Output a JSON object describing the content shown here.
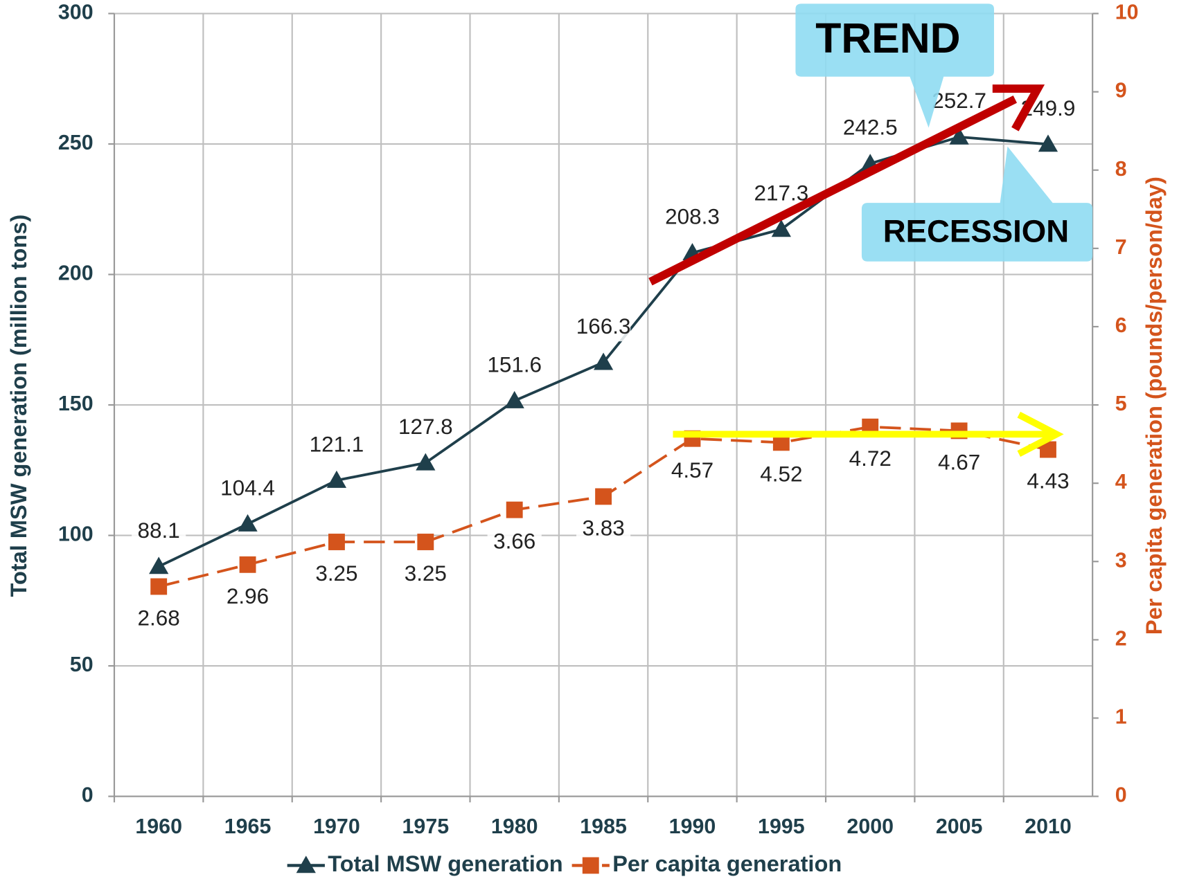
{
  "chart_data": {
    "type": "line",
    "categories": [
      "1960",
      "1965",
      "1970",
      "1975",
      "1980",
      "1985",
      "1990",
      "1995",
      "2000",
      "2005",
      "2010"
    ],
    "series": [
      {
        "name": "Total MSW generation",
        "color": "#1f3f4b",
        "marker": "triangle",
        "dashed": false,
        "values": [
          88.1,
          104.4,
          121.1,
          127.8,
          151.6,
          166.3,
          208.3,
          217.3,
          242.5,
          252.7,
          249.9
        ]
      },
      {
        "name": "Per capita generation",
        "color": "#d4541c",
        "marker": "square",
        "dashed": true,
        "axis": "y2",
        "values": [
          2.68,
          2.96,
          3.25,
          3.25,
          3.66,
          3.83,
          4.57,
          4.52,
          4.72,
          4.67,
          4.43
        ]
      }
    ],
    "y_label": "Total MSW generation (million tons)",
    "y2_label": "Per capita generation (pounds/person/day)",
    "ylim": [
      0,
      300
    ],
    "yticks": [
      0,
      50,
      100,
      150,
      200,
      250,
      300
    ],
    "y2lim": [
      0,
      10
    ],
    "y2ticks": [
      0,
      1,
      2,
      3,
      4,
      5,
      6,
      7,
      8,
      9,
      10
    ],
    "grid": true,
    "legend": "bottom",
    "annotations": [
      "TREND",
      "RECESSION"
    ]
  }
}
